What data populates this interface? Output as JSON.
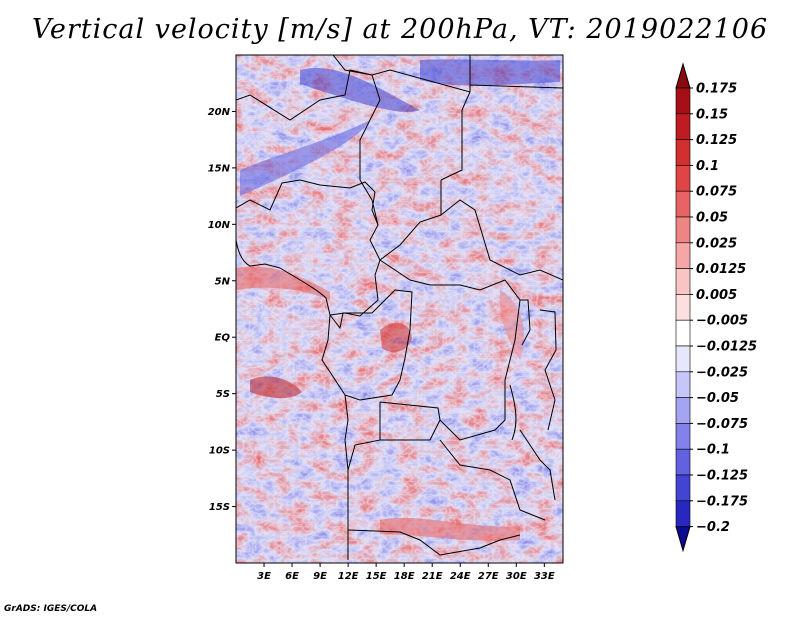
{
  "title": "Vertical velocity [m/s] at 200hPa, VT: 2019022106",
  "footer": "GrADS: IGES/COLA",
  "map": {
    "variable": "Vertical velocity",
    "units": "m/s",
    "level": "200hPa",
    "valid_time": "2019022106",
    "lon_range": [
      0,
      35
    ],
    "lat_range": [
      -20,
      25
    ],
    "lat_ticks": [
      {
        "value": 20,
        "label": "20N"
      },
      {
        "value": 15,
        "label": "15N"
      },
      {
        "value": 10,
        "label": "10N"
      },
      {
        "value": 5,
        "label": "5N"
      },
      {
        "value": 0,
        "label": "EQ"
      },
      {
        "value": -5,
        "label": "5S"
      },
      {
        "value": -10,
        "label": "10S"
      },
      {
        "value": -15,
        "label": "15S"
      }
    ],
    "lon_ticks": [
      {
        "value": 3,
        "label": "3E"
      },
      {
        "value": 6,
        "label": "6E"
      },
      {
        "value": 9,
        "label": "9E"
      },
      {
        "value": 12,
        "label": "12E"
      },
      {
        "value": 15,
        "label": "15E"
      },
      {
        "value": 18,
        "label": "18E"
      },
      {
        "value": 21,
        "label": "21E"
      },
      {
        "value": 24,
        "label": "24E"
      },
      {
        "value": 27,
        "label": "27E"
      },
      {
        "value": 30,
        "label": "30E"
      },
      {
        "value": 33,
        "label": "33E"
      }
    ]
  },
  "colorbar": {
    "levels": [
      {
        "label": "0.175",
        "color": "#a50f15"
      },
      {
        "label": "0.15",
        "color": "#be1c20"
      },
      {
        "label": "0.125",
        "color": "#d22f2f"
      },
      {
        "label": "0.1",
        "color": "#e04545"
      },
      {
        "label": "0.075",
        "color": "#e86363"
      },
      {
        "label": "0.05",
        "color": "#ef8484"
      },
      {
        "label": "0.025",
        "color": "#f5a6a6"
      },
      {
        "label": "0.0125",
        "color": "#f9c4c4"
      },
      {
        "label": "0.005",
        "color": "#fce0e0"
      },
      {
        "label": "−0.005",
        "color": "#ffffff"
      },
      {
        "label": "−0.0125",
        "color": "#e6e6fc"
      },
      {
        "label": "−0.025",
        "color": "#c6c6f8"
      },
      {
        "label": "−0.05",
        "color": "#a4a4f2"
      },
      {
        "label": "−0.075",
        "color": "#8282ea"
      },
      {
        "label": "−0.1",
        "color": "#6262e0"
      },
      {
        "label": "−0.125",
        "color": "#4444d2"
      },
      {
        "label": "−0.175",
        "color": "#2828c0"
      },
      {
        "label": "−0.2",
        "color": "#1414a8"
      }
    ],
    "top_color": "#8b0a10",
    "bottom_color": "#0c0c90"
  }
}
